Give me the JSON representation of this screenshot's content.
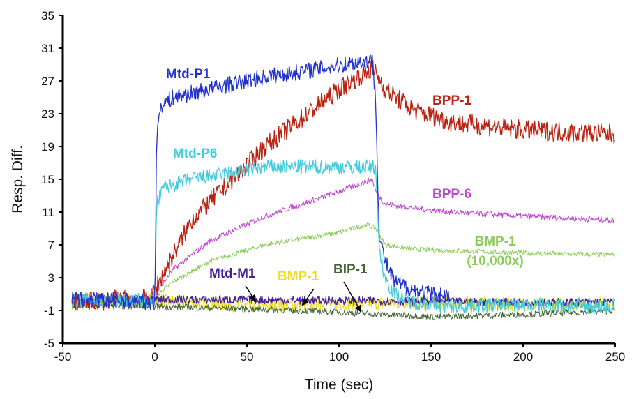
{
  "chart_data": {
    "type": "line",
    "title": "",
    "xlabel": "Time (sec)",
    "ylabel": "Resp. Diff.",
    "xlim": [
      -50,
      250
    ],
    "ylim": [
      -5,
      35
    ],
    "x_ticks": [
      "-50",
      "0",
      "50",
      "100",
      "150",
      "200",
      "250"
    ],
    "y_ticks": [
      "-5",
      "-1",
      "3",
      "7",
      "11",
      "15",
      "19",
      "23",
      "27",
      "31",
      "35"
    ],
    "grid": false,
    "series": [
      {
        "name": "Mtd-P1",
        "color": "#2233cc",
        "label_style": "label",
        "x": [
          -45,
          -20,
          -2,
          0,
          1,
          3,
          10,
          30,
          60,
          90,
          110,
          118,
          120,
          121,
          122,
          125,
          130,
          140,
          150,
          160
        ],
        "y": [
          0.3,
          0.2,
          0,
          0.3,
          20,
          24,
          25,
          26,
          27.5,
          28.5,
          29.3,
          29.5,
          25,
          15,
          8,
          5,
          2.5,
          1.5,
          1,
          0.8
        ]
      },
      {
        "name": "BPP-1",
        "color": "#bb2211",
        "label_style": "label",
        "x": [
          -45,
          -2,
          0,
          20,
          60,
          100,
          118,
          120,
          125,
          140,
          160,
          200,
          250
        ],
        "y": [
          0,
          0.5,
          1.5,
          10,
          19,
          26,
          28.5,
          28,
          26,
          23.5,
          22,
          21,
          20.5
        ]
      },
      {
        "name": "Mtd-P6",
        "color": "#44ccdd",
        "label_style": "label",
        "x": [
          -45,
          -2,
          0,
          1,
          5,
          20,
          60,
          100,
          120,
          121,
          122,
          125,
          130,
          140,
          160,
          200,
          250
        ],
        "y": [
          0.2,
          0.2,
          0.5,
          12,
          14,
          15,
          16.5,
          16.5,
          16.5,
          12,
          6,
          3,
          1,
          0,
          -0.5,
          -0.3,
          -0.5
        ]
      },
      {
        "name": "BPP-6",
        "color": "#bb44cc",
        "label_style": "label",
        "x": [
          -45,
          0,
          2,
          10,
          30,
          60,
          100,
          118,
          120,
          125,
          140,
          160,
          200,
          250
        ],
        "y": [
          0,
          0.3,
          1.5,
          4,
          7.5,
          10.5,
          13.5,
          15,
          13.5,
          12,
          11.5,
          11,
          10.5,
          10
        ]
      },
      {
        "name": "BMP-1\n(10,000x)",
        "color": "#88cc55",
        "label_style": "label",
        "x": [
          -45,
          0,
          2,
          10,
          30,
          60,
          100,
          115,
          120,
          125,
          140,
          160,
          200,
          250
        ],
        "y": [
          0,
          0.2,
          1,
          2.5,
          5,
          7,
          8.5,
          9.5,
          9,
          7,
          6.5,
          6.3,
          6,
          5.8
        ]
      },
      {
        "name": "Mtd-M1",
        "color": "#442299",
        "label_style": "arrow",
        "x": [
          -45,
          0,
          50,
          100,
          150,
          200,
          250
        ],
        "y": [
          0.2,
          0.3,
          0.3,
          0.2,
          0.1,
          0,
          0
        ]
      },
      {
        "name": "BMP-1",
        "color": "#eedd22",
        "label_style": "arrow",
        "x": [
          -45,
          0,
          50,
          100,
          150,
          200,
          250
        ],
        "y": [
          -0.2,
          0.3,
          -0.5,
          -0.2,
          0,
          -0.3,
          -0.1
        ]
      },
      {
        "name": "BIP-1",
        "color": "#446633",
        "label_style": "arrow",
        "x": [
          -45,
          0,
          50,
          100,
          150,
          200,
          250
        ],
        "y": [
          -0.3,
          -0.5,
          -0.8,
          -1.2,
          -1.8,
          -1.5,
          -1.0
        ]
      }
    ]
  }
}
